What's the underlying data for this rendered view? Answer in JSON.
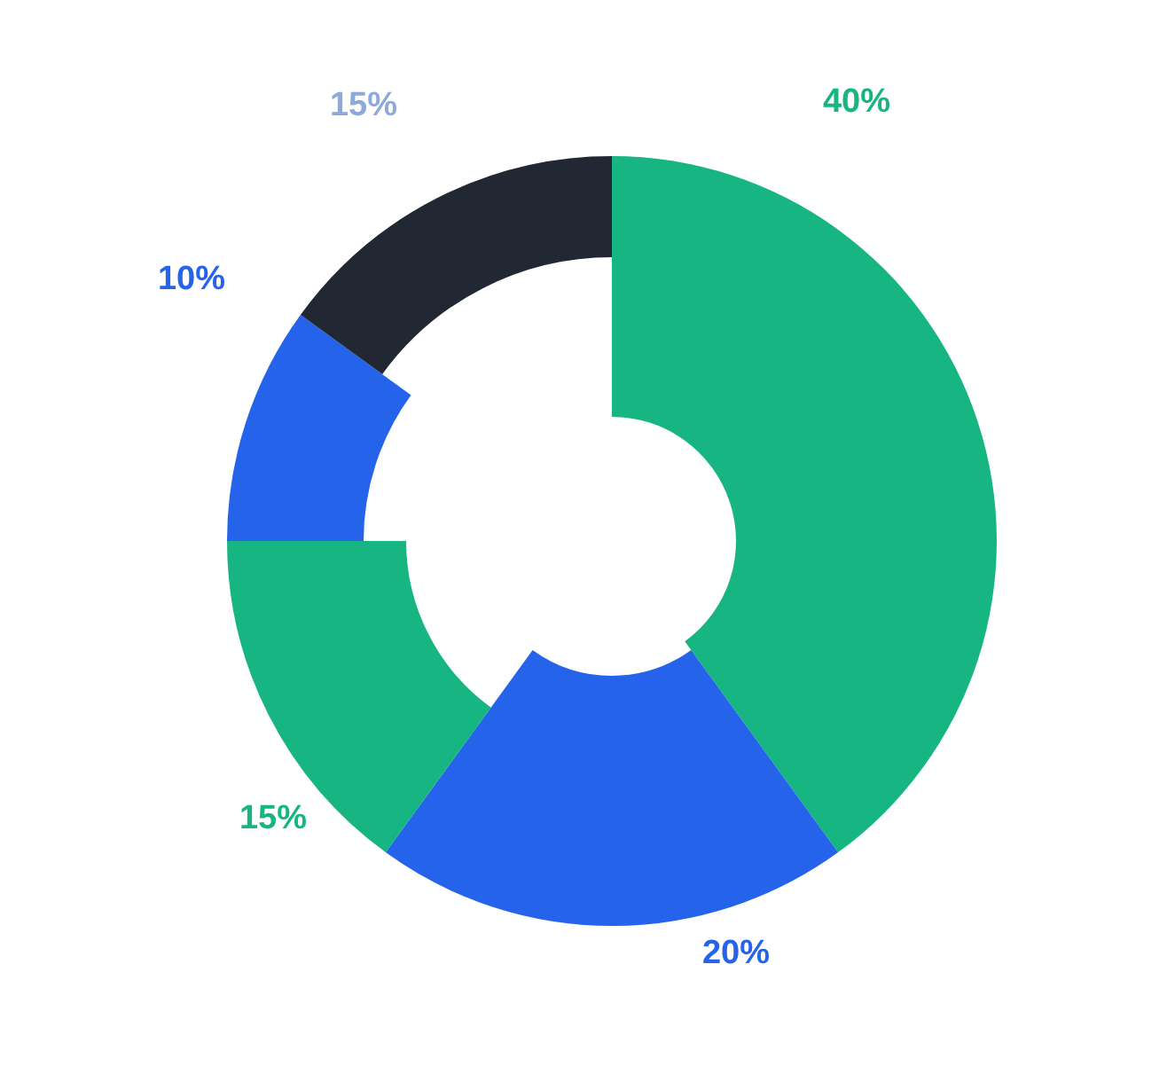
{
  "chart_data": {
    "type": "donut",
    "categories": [
      null,
      null,
      null,
      null,
      null
    ],
    "values": [
      40,
      20,
      15,
      10,
      15
    ],
    "colors": [
      "#16b582",
      "#2563eb",
      "#16b582",
      "#2563eb",
      "#222833"
    ],
    "value_labels": [
      "40%",
      "20%",
      "15%",
      "10%",
      "15%"
    ],
    "legend": false
  }
}
